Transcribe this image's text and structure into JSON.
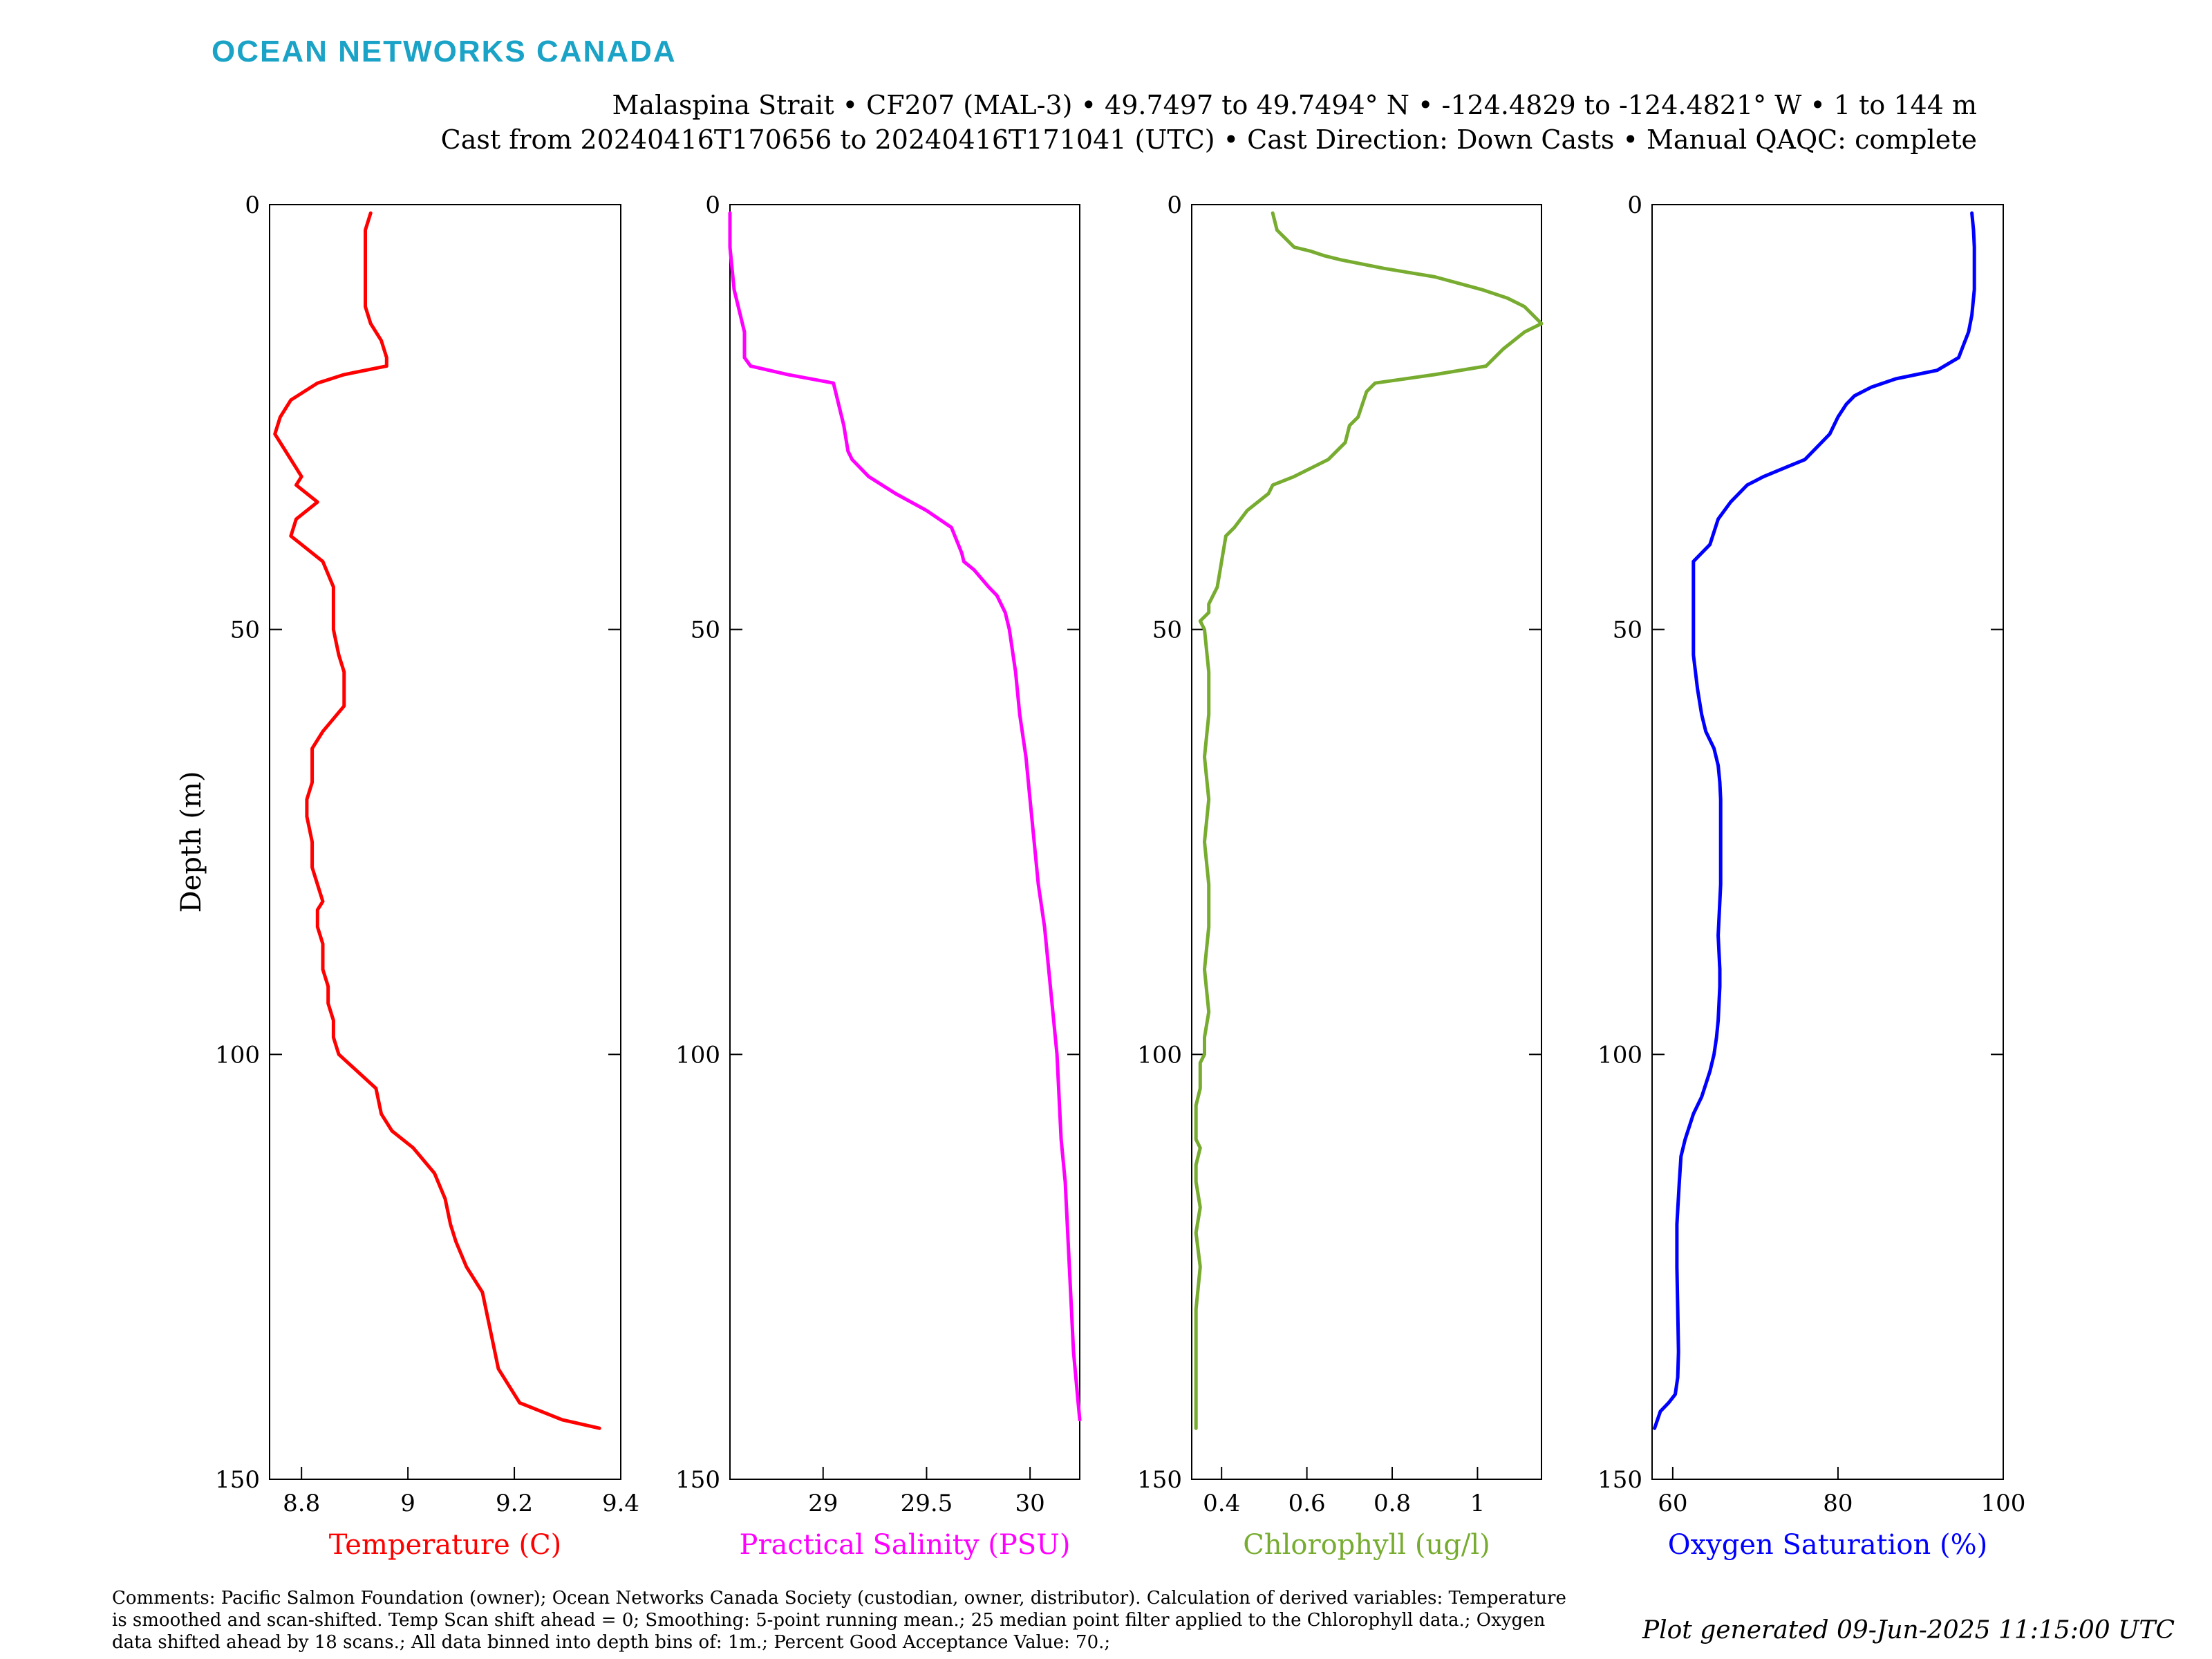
{
  "header": {
    "logo_text": "OCEAN NETWORKS CANADA",
    "line1": "Malaspina Strait • CF207 (MAL-3) • 49.7497 to 49.7494° N • -124.4829 to -124.4821° W • 1 to 144 m",
    "line2": "Cast from 20240416T170656 to 20240416T171041 (UTC) • Cast Direction: Down Casts • Manual QAQC: complete"
  },
  "footer": {
    "comments": "Comments: Pacific Salmon Foundation (owner); Ocean Networks Canada Society (custodian, owner, distributor). Calculation of derived variables: Temperature is smoothed and scan-shifted. Temp Scan shift ahead = 0; Smoothing: 5-point running mean.; 25 median point filter applied to the Chlorophyll data.; Oxygen data shifted ahead by 18 scans.; All data binned into depth bins of: 1m.; Percent Good Acceptance Value: 70.;",
    "generated": "Plot generated 09-Jun-2025 11:15:00 UTC"
  },
  "colors": {
    "logo": "#1aa3c6",
    "temperature": "#ff0000",
    "salinity": "#ff00ff",
    "chlorophyll": "#77ac30",
    "oxygen": "#0000ff"
  },
  "chart_data": [
    {
      "type": "line",
      "xlabel": "Temperature (C)",
      "ylabel": "Depth (m)",
      "color": "#ff0000",
      "xlim": [
        8.74,
        9.4
      ],
      "ylim": [
        0,
        150
      ],
      "y_reversed": true,
      "xticks": [
        8.8,
        9,
        9.2,
        9.4
      ],
      "xtick_labels": [
        "8.8",
        "9",
        "9.2",
        "9.4"
      ],
      "yticks": [
        0,
        50,
        100,
        150
      ],
      "ytick_labels": [
        "0",
        "50",
        "100",
        "150"
      ],
      "x": [
        8.93,
        8.92,
        8.92,
        8.92,
        8.92,
        8.93,
        8.95,
        8.96,
        8.96,
        8.88,
        8.83,
        8.78,
        8.76,
        8.75,
        8.77,
        8.79,
        8.8,
        8.79,
        8.81,
        8.83,
        8.79,
        8.78,
        8.8,
        8.84,
        8.86,
        8.86,
        8.86,
        8.87,
        8.88,
        8.88,
        8.88,
        8.84,
        8.82,
        8.82,
        8.82,
        8.81,
        8.81,
        8.82,
        8.82,
        8.83,
        8.84,
        8.83,
        8.83,
        8.84,
        8.84,
        8.85,
        8.85,
        8.86,
        8.86,
        8.87,
        8.94,
        8.95,
        8.97,
        9.01,
        9.05,
        9.07,
        9.08,
        9.09,
        9.11,
        9.14,
        9.15,
        9.16,
        9.17,
        9.19,
        9.21,
        9.29,
        9.36
      ],
      "y": [
        1,
        3,
        6,
        10,
        12,
        14,
        16,
        18,
        19,
        20,
        21,
        23,
        25,
        27,
        29,
        31,
        32,
        33,
        34,
        35,
        37,
        39,
        40,
        42,
        45,
        48,
        50,
        53,
        55,
        57,
        59,
        62,
        64,
        66,
        68,
        70,
        72,
        75,
        78,
        80,
        82,
        83,
        85,
        87,
        90,
        92,
        94,
        96,
        98,
        100,
        104,
        107,
        109,
        111,
        114,
        117,
        120,
        122,
        125,
        128,
        131,
        134,
        137,
        139,
        141,
        143,
        144
      ]
    },
    {
      "type": "line",
      "xlabel": "Practical Salinity (PSU)",
      "ylabel": "",
      "color": "#ff00ff",
      "xlim": [
        28.55,
        30.24
      ],
      "ylim": [
        0,
        150
      ],
      "y_reversed": true,
      "xticks": [
        29,
        29.5,
        30
      ],
      "xtick_labels": [
        "29",
        "29.5",
        "30"
      ],
      "yticks": [
        0,
        50,
        100,
        150
      ],
      "ytick_labels": [
        "0",
        "50",
        "100",
        "150"
      ],
      "x": [
        28.55,
        28.55,
        28.57,
        28.6,
        28.62,
        28.62,
        28.65,
        28.83,
        29.05,
        29.08,
        29.1,
        29.12,
        29.14,
        29.22,
        29.35,
        29.5,
        29.62,
        29.67,
        29.68,
        29.73,
        29.8,
        29.84,
        29.88,
        29.9,
        29.93,
        29.95,
        29.98,
        30.0,
        30.02,
        30.04,
        30.07,
        30.09,
        30.11,
        30.13,
        30.15,
        30.17,
        30.18,
        30.19,
        30.21,
        30.24
      ],
      "y": [
        1,
        5,
        10,
        13,
        15,
        18,
        19,
        20,
        21,
        24,
        26,
        29,
        30,
        32,
        34,
        36,
        38,
        41,
        42,
        43,
        45,
        46,
        48,
        50,
        55,
        60,
        65,
        70,
        75,
        80,
        85,
        90,
        95,
        100,
        110,
        115,
        120,
        125,
        135,
        143
      ]
    },
    {
      "type": "line",
      "xlabel": "Chlorophyll (ug/l)",
      "ylabel": "",
      "color": "#77ac30",
      "xlim": [
        0.33,
        1.15
      ],
      "ylim": [
        0,
        150
      ],
      "y_reversed": true,
      "xticks": [
        0.4,
        0.6,
        0.8,
        1
      ],
      "xtick_labels": [
        "0.4",
        "0.6",
        "0.8",
        "1"
      ],
      "yticks": [
        0,
        50,
        100,
        150
      ],
      "ytick_labels": [
        "0",
        "50",
        "100",
        "150"
      ],
      "x": [
        0.52,
        0.53,
        0.55,
        0.57,
        0.61,
        0.64,
        0.68,
        0.78,
        0.9,
        1.01,
        1.07,
        1.11,
        1.15,
        1.11,
        1.06,
        1.02,
        0.9,
        0.76,
        0.74,
        0.72,
        0.7,
        0.69,
        0.65,
        0.57,
        0.52,
        0.51,
        0.46,
        0.43,
        0.41,
        0.4,
        0.39,
        0.37,
        0.37,
        0.35,
        0.36,
        0.37,
        0.37,
        0.36,
        0.37,
        0.36,
        0.37,
        0.37,
        0.36,
        0.37,
        0.36,
        0.36,
        0.35,
        0.35,
        0.34,
        0.34,
        0.34,
        0.35,
        0.34,
        0.34,
        0.35,
        0.34,
        0.35,
        0.34,
        0.34,
        0.34,
        0.34
      ],
      "y": [
        1,
        3,
        4,
        5,
        5.5,
        6,
        6.5,
        7.5,
        8.5,
        10,
        11,
        12,
        14,
        15,
        17,
        19,
        20,
        21,
        22,
        25,
        26,
        28,
        30,
        32,
        33,
        34,
        36,
        38,
        39,
        42,
        45,
        47,
        48,
        49,
        50,
        55,
        60,
        65,
        70,
        75,
        80,
        85,
        90,
        95,
        98,
        100,
        101,
        104,
        106,
        108,
        110,
        111,
        113,
        115,
        118,
        121,
        125,
        130,
        135,
        139,
        144
      ]
    },
    {
      "type": "line",
      "xlabel": "Oxygen Saturation (%)",
      "ylabel": "",
      "color": "#0000ff",
      "xlim": [
        57.5,
        100
      ],
      "ylim": [
        0,
        150
      ],
      "y_reversed": true,
      "xticks": [
        60,
        80,
        100
      ],
      "xtick_labels": [
        "60",
        "80",
        "100"
      ],
      "yticks": [
        0,
        50,
        100,
        150
      ],
      "ytick_labels": [
        "0",
        "50",
        "100",
        "150"
      ],
      "x": [
        96.2,
        96.4,
        96.5,
        96.5,
        96.5,
        96.2,
        95.8,
        95.2,
        94.6,
        92.0,
        87.0,
        84.0,
        82.0,
        81.0,
        80.0,
        79.0,
        78.0,
        76.0,
        73.5,
        71.0,
        69.0,
        67.0,
        65.5,
        64.5,
        63.5,
        62.5,
        62.5,
        62.5,
        62.5,
        62.5,
        63.0,
        63.5,
        64.0,
        65.0,
        65.5,
        65.7,
        65.8,
        65.8,
        65.8,
        65.7,
        65.6,
        65.5,
        65.6,
        65.7,
        65.7,
        65.6,
        65.5,
        65.3,
        65.0,
        64.5,
        63.5,
        62.5,
        61.5,
        61.0,
        60.8,
        60.5,
        60.5,
        60.6,
        60.7,
        60.6,
        60.3,
        59.5,
        58.5,
        57.8
      ],
      "y": [
        1,
        3,
        5,
        8,
        10,
        13,
        15,
        16.5,
        18,
        19.5,
        20.5,
        21.5,
        22.5,
        23.5,
        25,
        27,
        28,
        30,
        31,
        32,
        33,
        35,
        37,
        40,
        41,
        42,
        45,
        48,
        50,
        53,
        57,
        60,
        62,
        64,
        66,
        68,
        70,
        75,
        80,
        82,
        84,
        86,
        88,
        90,
        92,
        94,
        96,
        98,
        100,
        102,
        105,
        107,
        110,
        112,
        115,
        120,
        125,
        130,
        135,
        138,
        140,
        141,
        142,
        144
      ]
    }
  ]
}
